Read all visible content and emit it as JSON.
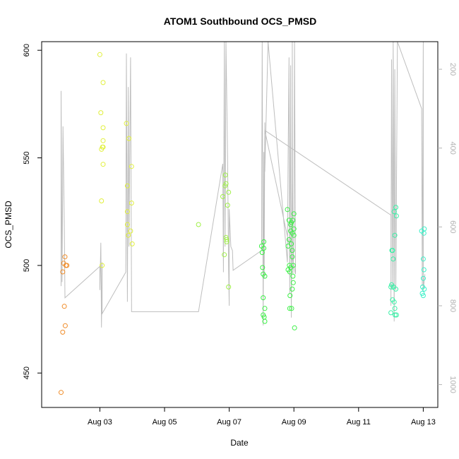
{
  "chart_data": {
    "type": "scatter",
    "title": "ATOM1 Southbound OCS_PMSD",
    "xlabel": "Date",
    "ylabel": "OCS_PMSD",
    "x_ticks": [
      "Aug 03",
      "Aug 05",
      "Aug 07",
      "Aug 09",
      "Aug 11",
      "Aug 13"
    ],
    "x_tick_days": [
      3,
      5,
      7,
      9,
      11,
      13
    ],
    "xlim_days": [
      1.2,
      13.45
    ],
    "ylim": [
      434,
      604
    ],
    "y_ticks": [
      450,
      500,
      550,
      600
    ],
    "y2_ticks": [
      200,
      400,
      600,
      800,
      1000
    ],
    "y2lim": [
      1058,
      130
    ],
    "y2_reversed": true,
    "grid": false,
    "colors": {
      "altitude_line": "#bebebe",
      "points_by_time": [
        "#f08c28",
        "#e1f03c",
        "#9ff047",
        "#3cf046",
        "#38f0a6",
        "#3cf0c8"
      ]
    },
    "series": [
      {
        "color": "#f08c28",
        "points": [
          [
            1.8,
            441
          ],
          [
            1.85,
            469
          ],
          [
            1.85,
            497
          ],
          [
            1.88,
            501
          ],
          [
            1.9,
            481
          ],
          [
            1.92,
            504
          ],
          [
            1.93,
            472
          ],
          [
            1.95,
            500
          ],
          [
            1.98,
            500
          ]
        ]
      },
      {
        "color": "#e1f03c",
        "points": [
          [
            3.0,
            598
          ],
          [
            3.03,
            571
          ],
          [
            3.05,
            554
          ],
          [
            3.05,
            530
          ],
          [
            3.07,
            500
          ],
          [
            3.08,
            555
          ],
          [
            3.1,
            585
          ],
          [
            3.1,
            558
          ],
          [
            3.1,
            547
          ],
          [
            3.1,
            555
          ],
          [
            3.1,
            564
          ],
          [
            3.82,
            566
          ],
          [
            3.85,
            537
          ],
          [
            3.85,
            525
          ],
          [
            3.85,
            519
          ],
          [
            3.88,
            514
          ],
          [
            3.9,
            559
          ],
          [
            3.95,
            516
          ],
          [
            3.98,
            546
          ],
          [
            3.98,
            529
          ],
          [
            4.0,
            510
          ]
        ]
      },
      {
        "color": "#9ff047",
        "points": [
          [
            6.05,
            519
          ],
          [
            6.8,
            532
          ],
          [
            6.85,
            505
          ],
          [
            6.87,
            537
          ],
          [
            6.88,
            542
          ],
          [
            6.9,
            538
          ],
          [
            6.9,
            513
          ],
          [
            6.92,
            511
          ],
          [
            6.92,
            512
          ],
          [
            6.95,
            528
          ],
          [
            6.98,
            534
          ],
          [
            6.98,
            490
          ]
        ]
      },
      {
        "color": "#3cf046",
        "points": [
          [
            8.0,
            509
          ],
          [
            8.02,
            506
          ],
          [
            8.03,
            499
          ],
          [
            8.05,
            496
          ],
          [
            8.05,
            485
          ],
          [
            8.05,
            477
          ],
          [
            8.07,
            511
          ],
          [
            8.07,
            508
          ],
          [
            8.08,
            476
          ],
          [
            8.1,
            480
          ],
          [
            8.1,
            474
          ],
          [
            8.1,
            495
          ],
          [
            8.8,
            526
          ],
          [
            8.82,
            498
          ],
          [
            8.82,
            509
          ],
          [
            8.85,
            512
          ],
          [
            8.85,
            521
          ],
          [
            8.86,
            500
          ],
          [
            8.87,
            497
          ],
          [
            8.87,
            480
          ],
          [
            8.88,
            486
          ],
          [
            8.9,
            516
          ],
          [
            8.9,
            519
          ],
          [
            8.9,
            499
          ],
          [
            8.92,
            510
          ],
          [
            8.92,
            520
          ],
          [
            8.93,
            480
          ],
          [
            8.95,
            515
          ],
          [
            8.95,
            504
          ],
          [
            8.95,
            489
          ],
          [
            8.95,
            507
          ],
          [
            8.97,
            521
          ],
          [
            8.97,
            495
          ],
          [
            8.98,
            492
          ],
          [
            8.98,
            500
          ],
          [
            9.0,
            514
          ],
          [
            9.0,
            524
          ],
          [
            9.0,
            517
          ],
          [
            9.02,
            471
          ]
        ]
      },
      {
        "color": "#38f0a6",
        "points": [
          [
            12.0,
            490
          ],
          [
            12.0,
            478
          ],
          [
            12.02,
            491
          ],
          [
            12.03,
            507
          ],
          [
            12.05,
            484
          ],
          [
            12.05,
            507
          ],
          [
            12.07,
            503
          ],
          [
            12.08,
            490
          ],
          [
            12.1,
            483
          ],
          [
            12.1,
            525
          ],
          [
            12.12,
            480
          ],
          [
            12.12,
            514
          ],
          [
            12.13,
            477
          ],
          [
            12.15,
            527
          ],
          [
            12.15,
            489
          ],
          [
            12.17,
            523
          ],
          [
            12.17,
            477
          ]
        ]
      },
      {
        "color": "#3cf0c8",
        "points": [
          [
            12.95,
            516
          ],
          [
            12.97,
            487
          ],
          [
            12.98,
            490
          ],
          [
            13.0,
            494
          ],
          [
            13.0,
            486
          ],
          [
            13.0,
            503
          ],
          [
            13.02,
            515
          ],
          [
            13.02,
            498
          ],
          [
            13.03,
            489
          ],
          [
            13.03,
            517
          ]
        ]
      }
    ],
    "altitude_track": [
      [
        1.8,
        750
      ],
      [
        1.8,
        255
      ],
      [
        1.83,
        740
      ],
      [
        1.86,
        345
      ],
      [
        1.9,
        600
      ],
      [
        1.92,
        780
      ],
      [
        3.0,
        700
      ],
      [
        3.0,
        760
      ],
      [
        3.03,
        640
      ],
      [
        3.05,
        855
      ],
      [
        3.07,
        690
      ],
      [
        3.07,
        820
      ],
      [
        3.8,
        715
      ],
      [
        3.82,
        160
      ],
      [
        3.85,
        790
      ],
      [
        3.88,
        245
      ],
      [
        3.9,
        650
      ],
      [
        3.95,
        170
      ],
      [
        3.98,
        795
      ],
      [
        3.98,
        815
      ],
      [
        6.05,
        815
      ],
      [
        6.8,
        440
      ],
      [
        6.82,
        715
      ],
      [
        6.85,
        130
      ],
      [
        6.87,
        650
      ],
      [
        6.9,
        130
      ],
      [
        6.95,
        425
      ],
      [
        6.98,
        705
      ],
      [
        7.0,
        800
      ],
      [
        7.0,
        555
      ],
      [
        7.05,
        650
      ],
      [
        7.1,
        660
      ],
      [
        7.12,
        710
      ],
      [
        8.0,
        660
      ],
      [
        8.02,
        130
      ],
      [
        8.05,
        850
      ],
      [
        8.07,
        410
      ],
      [
        8.08,
        730
      ],
      [
        8.1,
        335
      ],
      [
        8.1,
        460
      ],
      [
        8.2,
        130
      ],
      [
        8.8,
        690
      ],
      [
        8.82,
        425
      ],
      [
        8.85,
        170
      ],
      [
        8.87,
        770
      ],
      [
        8.9,
        190
      ],
      [
        8.92,
        830
      ],
      [
        8.95,
        480
      ],
      [
        8.95,
        130
      ],
      [
        8.97,
        720
      ],
      [
        9.0,
        640
      ],
      [
        9.02,
        130
      ],
      [
        9.05,
        720
      ],
      [
        8.1,
        355
      ],
      [
        12.0,
        570
      ],
      [
        12.0,
        800
      ],
      [
        12.02,
        175
      ],
      [
        12.05,
        760
      ],
      [
        12.07,
        130
      ],
      [
        12.1,
        840
      ],
      [
        12.12,
        200
      ],
      [
        12.15,
        760
      ],
      [
        12.2,
        130
      ],
      [
        12.95,
        300
      ],
      [
        12.97,
        750
      ],
      [
        13.0,
        130
      ],
      [
        13.0,
        760
      ],
      [
        13.05,
        720
      ]
    ]
  }
}
